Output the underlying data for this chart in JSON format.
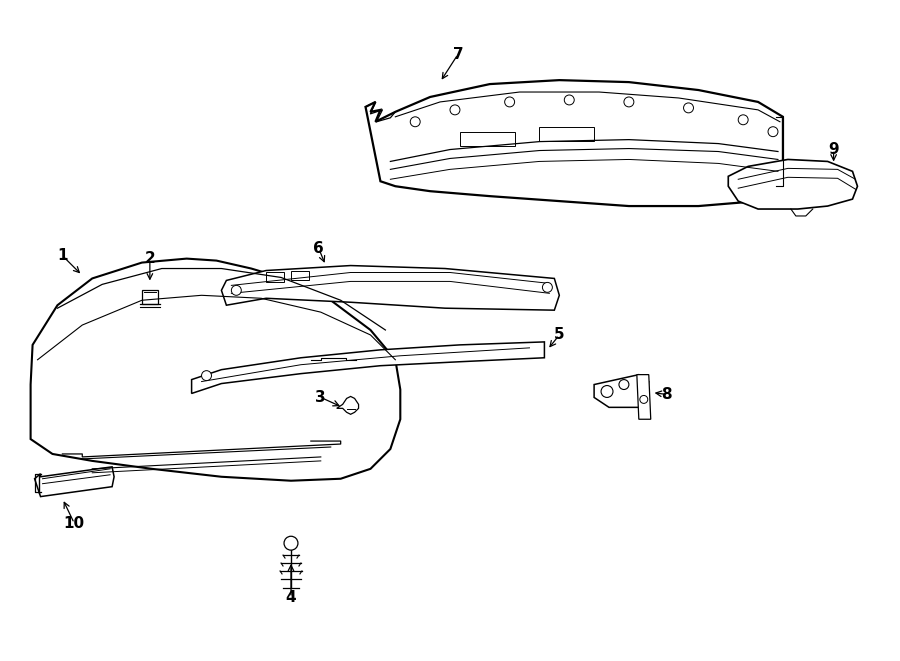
{
  "background_color": "#ffffff",
  "line_color": "#000000",
  "fig_width": 9.0,
  "fig_height": 6.61,
  "dpi": 100,
  "label_fontsize": 11
}
